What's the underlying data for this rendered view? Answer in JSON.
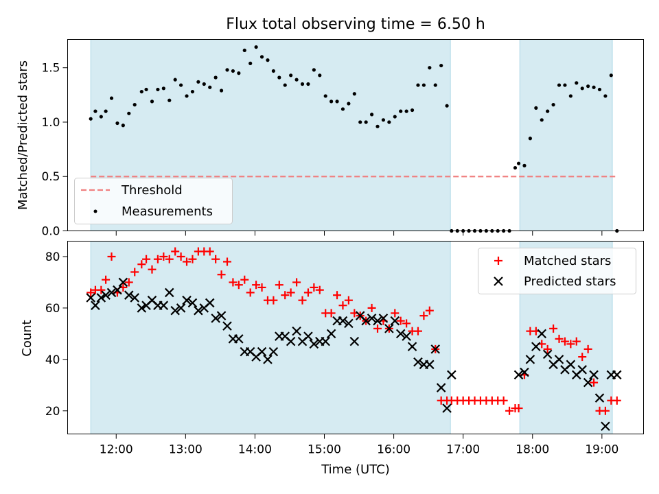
{
  "title": "Flux total observing time = 6.50 h",
  "colors": {
    "shade": "#add8e6",
    "threshold": "#f08080",
    "measurement": "#000000",
    "matched": "#ff0000",
    "predicted": "#000000"
  },
  "shaded_periods": [
    {
      "start": "11:38",
      "end": "16:49"
    },
    {
      "start": "17:49",
      "end": "19:09"
    }
  ],
  "chart_data": [
    {
      "type": "scatter",
      "ylabel": "Matched/Predicted stars",
      "xlabel": "",
      "ylim": [
        0,
        1.76
      ],
      "yticks": [
        0.0,
        0.5,
        1.0,
        1.5
      ],
      "ytick_labels": [
        "0.0",
        "0.5",
        "1.0",
        "1.5"
      ],
      "legend": {
        "placement": "lower-left",
        "entries": [
          "Threshold",
          "Measurements"
        ]
      },
      "threshold": {
        "name": "Threshold",
        "value": 0.5,
        "x_start": "11:38",
        "x_end": "19:13",
        "style": "dashed"
      },
      "series": [
        {
          "name": "Measurements",
          "marker": "dot",
          "x": [
            "11:38",
            "11:42",
            "11:47",
            "11:51",
            "11:56",
            "12:01",
            "12:06",
            "12:11",
            "12:16",
            "12:22",
            "12:26",
            "12:31",
            "12:36",
            "12:41",
            "12:46",
            "12:51",
            "12:56",
            "13:01",
            "13:06",
            "13:11",
            "13:16",
            "13:21",
            "13:26",
            "13:31",
            "13:36",
            "13:41",
            "13:46",
            "13:51",
            "13:56",
            "14:01",
            "14:06",
            "14:11",
            "14:16",
            "14:21",
            "14:26",
            "14:31",
            "14:36",
            "14:41",
            "14:46",
            "14:51",
            "14:56",
            "15:01",
            "15:06",
            "15:11",
            "15:16",
            "15:21",
            "15:26",
            "15:31",
            "15:36",
            "15:41",
            "15:46",
            "15:51",
            "15:56",
            "16:01",
            "16:06",
            "16:11",
            "16:16",
            "16:21",
            "16:26",
            "16:31",
            "16:36",
            "16:41",
            "16:46",
            "16:50",
            "16:55",
            "17:00",
            "17:05",
            "17:10",
            "17:15",
            "17:20",
            "17:25",
            "17:30",
            "17:35",
            "17:40",
            "17:45",
            "17:48",
            "17:53",
            "17:58",
            "18:03",
            "18:08",
            "18:13",
            "18:18",
            "18:23",
            "18:28",
            "18:33",
            "18:38",
            "18:43",
            "18:48",
            "18:53",
            "18:58",
            "19:03",
            "19:08",
            "19:13"
          ],
          "y": [
            1.03,
            1.1,
            1.05,
            1.1,
            1.22,
            0.99,
            0.97,
            1.08,
            1.16,
            1.28,
            1.3,
            1.19,
            1.3,
            1.31,
            1.2,
            1.39,
            1.34,
            1.24,
            1.28,
            1.37,
            1.35,
            1.32,
            1.41,
            1.29,
            1.48,
            1.47,
            1.45,
            1.66,
            1.54,
            1.69,
            1.6,
            1.57,
            1.47,
            1.41,
            1.34,
            1.43,
            1.39,
            1.35,
            1.35,
            1.48,
            1.43,
            1.24,
            1.19,
            1.19,
            1.12,
            1.17,
            1.26,
            1.0,
            1.0,
            1.07,
            0.96,
            1.02,
            1.0,
            1.05,
            1.1,
            1.1,
            1.11,
            1.34,
            1.34,
            1.5,
            1.34,
            1.52,
            1.15,
            0.0,
            0.0,
            0.0,
            0.0,
            0.0,
            0.0,
            0.0,
            0.0,
            0.0,
            0.0,
            0.0,
            0.58,
            0.62,
            0.6,
            0.85,
            1.13,
            1.02,
            1.1,
            1.16,
            1.34,
            1.34,
            1.24,
            1.36,
            1.31,
            1.33,
            1.32,
            1.3,
            1.24,
            1.43,
            0.0
          ]
        }
      ]
    },
    {
      "type": "scatter",
      "ylabel": "Count",
      "xlabel": "Time (UTC)",
      "ylim": [
        11,
        86
      ],
      "yticks": [
        20,
        40,
        60,
        80
      ],
      "ytick_labels": [
        "20",
        "40",
        "60",
        "80"
      ],
      "xlim": [
        "11:18",
        "19:36"
      ],
      "xticks": [
        "12:00",
        "13:00",
        "14:00",
        "15:00",
        "16:00",
        "17:00",
        "18:00",
        "19:00"
      ],
      "xtick_labels": [
        "12:00",
        "13:00",
        "14:00",
        "15:00",
        "16:00",
        "17:00",
        "18:00",
        "19:00"
      ],
      "legend": {
        "placement": "top-right",
        "entries": [
          "Matched stars",
          "Predicted stars"
        ]
      },
      "series": [
        {
          "name": "Matched stars",
          "marker": "plus",
          "x": [
            "11:38",
            "11:42",
            "11:47",
            "11:51",
            "11:56",
            "12:01",
            "12:06",
            "12:11",
            "12:16",
            "12:22",
            "12:26",
            "12:31",
            "12:36",
            "12:41",
            "12:46",
            "12:51",
            "12:56",
            "13:01",
            "13:06",
            "13:11",
            "13:16",
            "13:21",
            "13:26",
            "13:31",
            "13:36",
            "13:41",
            "13:46",
            "13:51",
            "13:56",
            "14:01",
            "14:06",
            "14:11",
            "14:16",
            "14:21",
            "14:26",
            "14:31",
            "14:36",
            "14:41",
            "14:46",
            "14:51",
            "14:56",
            "15:01",
            "15:06",
            "15:11",
            "15:16",
            "15:21",
            "15:26",
            "15:31",
            "15:36",
            "15:41",
            "15:46",
            "15:51",
            "15:56",
            "16:01",
            "16:06",
            "16:11",
            "16:16",
            "16:21",
            "16:26",
            "16:31",
            "16:36",
            "16:41",
            "16:46",
            "16:50",
            "16:55",
            "17:00",
            "17:05",
            "17:10",
            "17:15",
            "17:20",
            "17:25",
            "17:30",
            "17:35",
            "17:40",
            "17:45",
            "17:48",
            "17:53",
            "17:58",
            "18:03",
            "18:08",
            "18:13",
            "18:18",
            "18:23",
            "18:28",
            "18:33",
            "18:38",
            "18:43",
            "18:48",
            "18:53",
            "18:58",
            "19:03",
            "19:08",
            "19:13"
          ],
          "y": [
            66,
            67,
            67,
            71,
            80,
            66,
            68,
            70,
            74,
            77,
            79,
            75,
            79,
            80,
            79,
            82,
            80,
            78,
            79,
            82,
            82,
            82,
            79,
            73,
            78,
            70,
            69,
            71,
            66,
            69,
            68,
            63,
            63,
            69,
            65,
            66,
            70,
            63,
            66,
            68,
            67,
            58,
            58,
            65,
            61,
            63,
            58,
            57,
            55,
            60,
            52,
            55,
            52,
            58,
            55,
            54,
            51,
            51,
            57,
            59,
            44,
            24,
            24,
            24,
            24,
            24,
            24,
            24,
            24,
            24,
            24,
            24,
            24,
            20,
            21,
            21,
            34,
            51,
            51,
            46,
            44,
            52,
            48,
            47,
            46,
            47,
            41,
            44,
            31,
            20,
            20,
            24,
            24
          ]
        },
        {
          "name": "Predicted stars",
          "marker": "x",
          "x": [
            "11:38",
            "11:42",
            "11:47",
            "11:51",
            "11:56",
            "12:01",
            "12:06",
            "12:11",
            "12:16",
            "12:22",
            "12:26",
            "12:31",
            "12:36",
            "12:41",
            "12:46",
            "12:51",
            "12:56",
            "13:01",
            "13:06",
            "13:11",
            "13:16",
            "13:21",
            "13:26",
            "13:31",
            "13:36",
            "13:41",
            "13:46",
            "13:51",
            "13:56",
            "14:01",
            "14:06",
            "14:11",
            "14:16",
            "14:21",
            "14:26",
            "14:31",
            "14:36",
            "14:41",
            "14:46",
            "14:51",
            "14:56",
            "15:01",
            "15:06",
            "15:11",
            "15:16",
            "15:21",
            "15:26",
            "15:31",
            "15:36",
            "15:41",
            "15:46",
            "15:51",
            "15:56",
            "16:01",
            "16:06",
            "16:11",
            "16:16",
            "16:21",
            "16:26",
            "16:31",
            "16:36",
            "16:41",
            "16:46",
            "16:50",
            "17:48",
            "17:53",
            "17:58",
            "18:03",
            "18:08",
            "18:13",
            "18:18",
            "18:23",
            "18:28",
            "18:33",
            "18:38",
            "18:43",
            "18:48",
            "18:53",
            "18:58",
            "19:03",
            "19:08",
            "19:13"
          ],
          "y": [
            64,
            61,
            64,
            65,
            66,
            67,
            70,
            65,
            64,
            60,
            61,
            63,
            61,
            61,
            66,
            59,
            60,
            63,
            62,
            59,
            60,
            62,
            56,
            57,
            53,
            48,
            48,
            43,
            43,
            41,
            43,
            40,
            43,
            49,
            49,
            47,
            51,
            47,
            49,
            46,
            47,
            47,
            50,
            55,
            55,
            54,
            47,
            57,
            55,
            56,
            55,
            56,
            52,
            55,
            50,
            49,
            45,
            39,
            38,
            38,
            44,
            29,
            21,
            34,
            34,
            35,
            40,
            45,
            50,
            42,
            38,
            40,
            36,
            38,
            34,
            36,
            31,
            34,
            25,
            14,
            34,
            34
          ]
        }
      ]
    }
  ]
}
